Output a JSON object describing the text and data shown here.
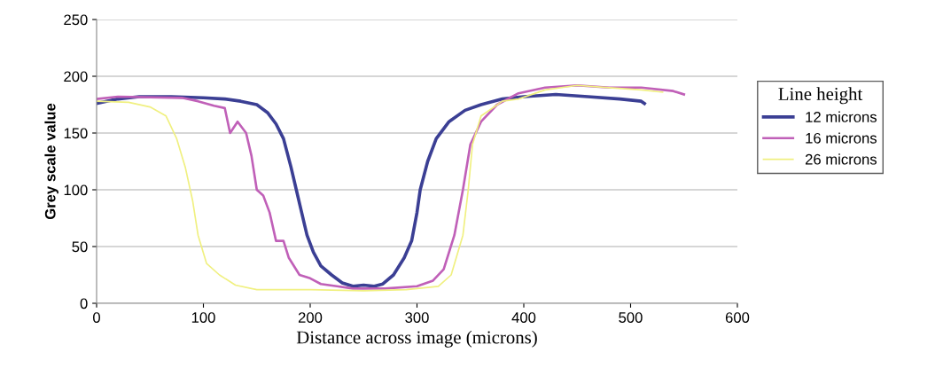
{
  "chart_data": {
    "type": "line",
    "xlabel": "Distance across image (microns)",
    "ylabel": "Grey scale value",
    "legend_title": "Line height",
    "xlim": [
      0,
      600
    ],
    "xticks": [
      0,
      100,
      200,
      300,
      400,
      500,
      600
    ],
    "ylim": [
      0,
      250
    ],
    "yticks": [
      0,
      50,
      100,
      150,
      200,
      250
    ],
    "grid": "y",
    "legend": "right",
    "marker": "none",
    "line_style": "solid",
    "series": [
      {
        "name": "12 microns",
        "color": "#3b3f94",
        "x": [
          0,
          20,
          40,
          70,
          100,
          120,
          135,
          150,
          160,
          168,
          175,
          182,
          187,
          192,
          197,
          203,
          210,
          220,
          230,
          240,
          250,
          260,
          268,
          278,
          288,
          295,
          300,
          303,
          310,
          318,
          330,
          345,
          360,
          380,
          400,
          430,
          460,
          490,
          510,
          513
        ],
        "values": [
          176,
          180,
          182,
          182,
          181,
          180,
          178,
          175,
          168,
          158,
          145,
          120,
          100,
          80,
          60,
          45,
          33,
          25,
          18,
          15,
          16,
          15,
          17,
          25,
          40,
          55,
          80,
          100,
          125,
          145,
          160,
          170,
          175,
          180,
          182,
          184,
          182,
          180,
          178,
          176
        ]
      },
      {
        "name": "16 microns",
        "color": "#c060b8",
        "x": [
          0,
          20,
          80,
          95,
          110,
          120,
          125,
          132,
          140,
          145,
          150,
          156,
          162,
          168,
          175,
          180,
          190,
          200,
          210,
          225,
          240,
          270,
          300,
          315,
          325,
          335,
          343,
          350,
          360,
          375,
          395,
          420,
          450,
          480,
          510,
          540,
          550
        ],
        "values": [
          180,
          182,
          181,
          178,
          174,
          172,
          150,
          160,
          150,
          130,
          100,
          95,
          80,
          55,
          55,
          40,
          25,
          22,
          17,
          15,
          13,
          13,
          15,
          20,
          30,
          60,
          100,
          140,
          160,
          175,
          185,
          190,
          192,
          190,
          190,
          187,
          184
        ]
      },
      {
        "name": "26 microns",
        "color": "#f0f080",
        "x": [
          0,
          30,
          50,
          65,
          75,
          83,
          90,
          95,
          103,
          115,
          130,
          150,
          200,
          250,
          290,
          320,
          332,
          343,
          348,
          352,
          360,
          380,
          395,
          420,
          450,
          480,
          510,
          530
        ],
        "values": [
          178,
          177,
          173,
          165,
          145,
          120,
          90,
          60,
          35,
          25,
          16,
          12,
          12,
          11,
          12,
          15,
          25,
          60,
          100,
          140,
          165,
          178,
          180,
          188,
          192,
          190,
          188,
          186
        ]
      }
    ]
  }
}
